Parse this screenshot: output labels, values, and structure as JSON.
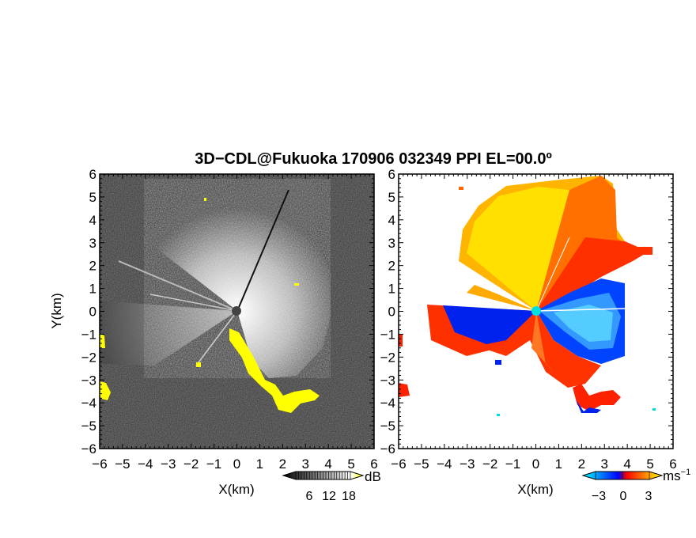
{
  "chart_data": {
    "title": "3D−CDL@Fukuoka 170906 032349 PPI EL=00.0º",
    "type": "heatmap",
    "panels": [
      {
        "name": "reflectivity",
        "xlabel": "X(km)",
        "ylabel": "Y(km)",
        "xlim": [
          -6,
          6
        ],
        "ylim": [
          -6,
          6
        ],
        "xticks": [
          "−6",
          "−5",
          "−4",
          "−3",
          "−2",
          "−1",
          "0",
          "1",
          "2",
          "3",
          "4",
          "5",
          "6"
        ],
        "yticks": [
          "−6",
          "−5",
          "−4",
          "−3",
          "−2",
          "−1",
          "0",
          "1",
          "2",
          "3",
          "4",
          "5",
          "6"
        ],
        "colorbar": {
          "unit": "dB",
          "ticks": [
            "6",
            "12",
            "18"
          ],
          "colors": [
            "#000000",
            "#ffffff",
            "#ffff00"
          ]
        }
      },
      {
        "name": "doppler-velocity",
        "xlabel": "X(km)",
        "xlim": [
          -6,
          6
        ],
        "ylim": [
          -6,
          6
        ],
        "xticks": [
          "−6",
          "−5",
          "−4",
          "−3",
          "−2",
          "−1",
          "0",
          "1",
          "2",
          "3",
          "4",
          "5",
          "6"
        ],
        "yticks": [
          "−6",
          "−5",
          "−4",
          "−3",
          "−2",
          "−1",
          "0",
          "1",
          "2",
          "3",
          "4",
          "5",
          "6"
        ],
        "colorbar": {
          "unit": "ms",
          "unit_exp": "−1",
          "ticks": [
            "−3",
            "0",
            "3"
          ],
          "colors": [
            "#00ffff",
            "#0000ff",
            "#ff0000",
            "#ffff00"
          ]
        }
      }
    ]
  }
}
